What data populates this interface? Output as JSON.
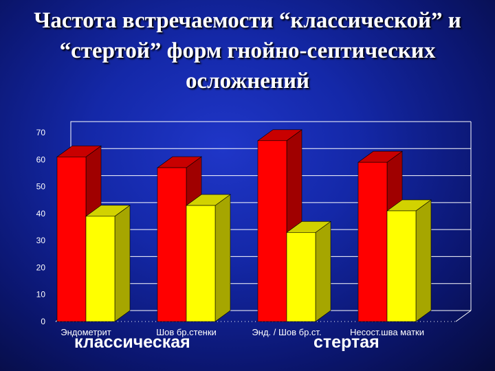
{
  "title_lines": [
    "Частота встречаемости “классической” и",
    "“стертой” форм гнойно-септических",
    "осложнений"
  ],
  "legend": {
    "classic": "классическая",
    "erased": "стертая"
  },
  "colors": {
    "classic": "#ff0000",
    "erased": "#ffff00",
    "axis": "#ffffff"
  },
  "chart_data": {
    "type": "bar",
    "categories": [
      "Эндометрит",
      "Шов бр.стенки",
      "Энд. / Шов бр.ст.",
      "Несост.шва матки"
    ],
    "series": [
      {
        "name": "классическая",
        "values": [
          61,
          57,
          67,
          59
        ]
      },
      {
        "name": "стертая",
        "values": [
          39,
          43,
          33,
          41
        ]
      }
    ],
    "ylim": [
      0,
      70
    ],
    "yticks": [
      0,
      10,
      20,
      30,
      40,
      50,
      60,
      70
    ],
    "grid": true,
    "projection": "3d"
  }
}
